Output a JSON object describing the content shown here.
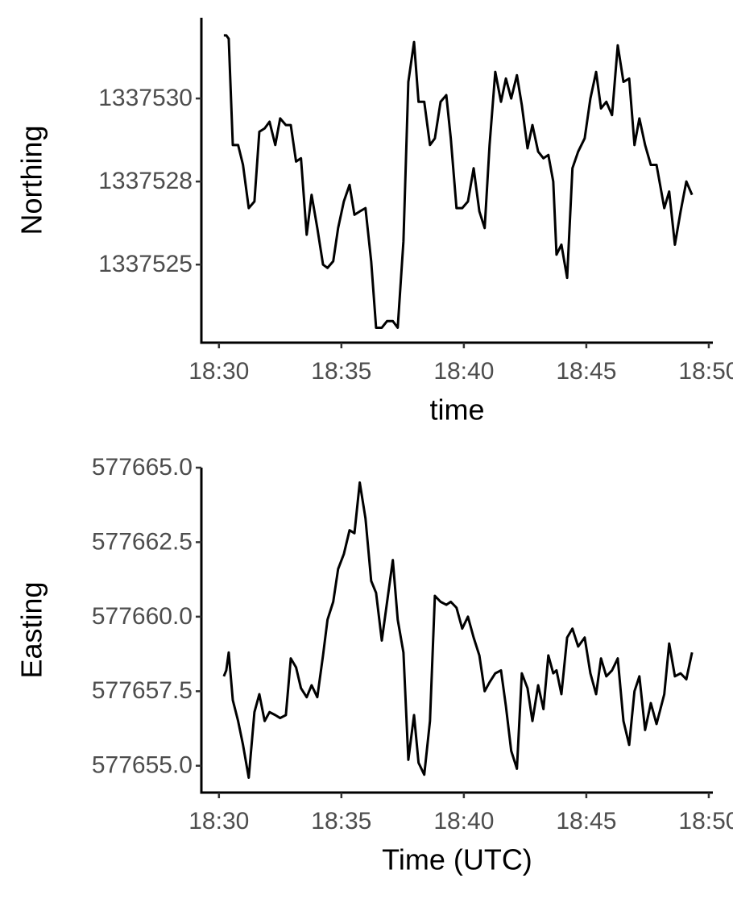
{
  "chart_data": [
    {
      "type": "line",
      "x_label": "time",
      "y_label": "Northing",
      "color": "#000000",
      "xlim": [
        "18:29:17",
        "18:50:10"
      ],
      "xticks": [
        "18:30",
        "18:35",
        "18:40",
        "18:45",
        "18:50"
      ],
      "ylim": [
        1337522.65,
        1337532.43
      ],
      "yticks": [
        {
          "value": 1337525,
          "label": "1337525"
        },
        {
          "value": 1337527.5,
          "label": "1337528"
        },
        {
          "value": 1337530,
          "label": "1337530"
        }
      ],
      "x": [
        "18:30:12",
        "18:30:18",
        "18:30:24",
        "18:30:34",
        "18:30:47",
        "18:30:59",
        "18:31:13",
        "18:31:27",
        "18:31:39",
        "18:31:52",
        "18:32:04",
        "18:32:18",
        "18:32:30",
        "18:32:44",
        "18:32:56",
        "18:33:09",
        "18:33:21",
        "18:33:35",
        "18:33:47",
        "18:34:01",
        "18:34:15",
        "18:34:26",
        "18:34:40",
        "18:34:52",
        "18:35:06",
        "18:35:20",
        "18:35:32",
        "18:35:45",
        "18:35:59",
        "18:36:13",
        "18:36:25",
        "18:36:39",
        "18:36:52",
        "18:37:06",
        "18:37:18",
        "18:37:32",
        "18:37:44",
        "18:37:58",
        "18:38:09",
        "18:38:23",
        "18:38:37",
        "18:38:49",
        "18:39:03",
        "18:39:17",
        "18:39:28",
        "18:39:42",
        "18:39:56",
        "18:40:10",
        "18:40:24",
        "18:40:38",
        "18:40:51",
        "18:41:03",
        "18:41:17",
        "18:41:31",
        "18:41:43",
        "18:41:56",
        "18:42:10",
        "18:42:22",
        "18:42:36",
        "18:42:48",
        "18:43:02",
        "18:43:15",
        "18:43:27",
        "18:43:39",
        "18:43:47",
        "18:43:59",
        "18:44:13",
        "18:44:26",
        "18:44:40",
        "18:44:56",
        "18:45:10",
        "18:45:24",
        "18:45:36",
        "18:45:49",
        "18:46:03",
        "18:46:17",
        "18:46:31",
        "18:46:45",
        "18:46:58",
        "18:47:10",
        "18:47:24",
        "18:47:38",
        "18:47:52",
        "18:48:11",
        "18:48:23",
        "18:48:37",
        "18:48:51",
        "18:49:05",
        "18:49:19"
      ],
      "values": [
        1337531.9,
        1337531.9,
        1337531.8,
        1337528.6,
        1337528.6,
        1337528.0,
        1337526.7,
        1337526.9,
        1337529.0,
        1337529.1,
        1337529.3,
        1337528.6,
        1337529.4,
        1337529.2,
        1337529.2,
        1337528.1,
        1337528.2,
        1337525.9,
        1337527.1,
        1337526.1,
        1337525.0,
        1337524.9,
        1337525.1,
        1337526.1,
        1337526.9,
        1337527.4,
        1337526.5,
        1337526.6,
        1337526.7,
        1337525.1,
        1337523.1,
        1337523.1,
        1337523.3,
        1337523.3,
        1337523.1,
        1337525.7,
        1337530.5,
        1337531.7,
        1337529.9,
        1337529.9,
        1337528.6,
        1337528.8,
        1337529.9,
        1337530.1,
        1337528.8,
        1337526.7,
        1337526.7,
        1337526.9,
        1337527.9,
        1337526.6,
        1337526.1,
        1337528.6,
        1337530.8,
        1337529.9,
        1337530.6,
        1337530.0,
        1337530.7,
        1337529.8,
        1337528.5,
        1337529.2,
        1337528.4,
        1337528.2,
        1337528.3,
        1337527.5,
        1337525.3,
        1337525.6,
        1337524.6,
        1337527.9,
        1337528.4,
        1337528.8,
        1337530.0,
        1337530.8,
        1337529.7,
        1337529.9,
        1337529.5,
        1337531.6,
        1337530.5,
        1337530.6,
        1337528.6,
        1337529.4,
        1337528.6,
        1337528.0,
        1337528.0,
        1337526.7,
        1337527.2,
        1337525.6,
        1337526.6,
        1337527.5,
        1337527.1
      ]
    },
    {
      "type": "line",
      "x_label": "Time (UTC)",
      "y_label": "Easting",
      "color": "#000000",
      "xlim": [
        "18:29:17",
        "18:50:10"
      ],
      "xticks": [
        "18:30",
        "18:35",
        "18:40",
        "18:45",
        "18:50"
      ],
      "ylim": [
        577654.1,
        577665.0
      ],
      "yticks": [
        {
          "value": 577655,
          "label": "577655.0"
        },
        {
          "value": 577657.5,
          "label": "577657.5"
        },
        {
          "value": 577660,
          "label": "577660.0"
        },
        {
          "value": 577662.5,
          "label": "577662.5"
        },
        {
          "value": 577665,
          "label": "577665.0"
        }
      ],
      "x": [
        "18:30:12",
        "18:30:18",
        "18:30:24",
        "18:30:34",
        "18:30:47",
        "18:30:59",
        "18:31:13",
        "18:31:27",
        "18:31:39",
        "18:31:52",
        "18:32:04",
        "18:32:18",
        "18:32:30",
        "18:32:44",
        "18:32:56",
        "18:33:09",
        "18:33:21",
        "18:33:35",
        "18:33:47",
        "18:34:01",
        "18:34:15",
        "18:34:26",
        "18:34:40",
        "18:34:52",
        "18:35:06",
        "18:35:20",
        "18:35:32",
        "18:35:45",
        "18:35:59",
        "18:36:13",
        "18:36:25",
        "18:36:39",
        "18:36:52",
        "18:37:06",
        "18:37:18",
        "18:37:32",
        "18:37:44",
        "18:37:58",
        "18:38:09",
        "18:38:23",
        "18:38:37",
        "18:38:49",
        "18:39:03",
        "18:39:17",
        "18:39:28",
        "18:39:42",
        "18:39:56",
        "18:40:10",
        "18:40:24",
        "18:40:38",
        "18:40:51",
        "18:41:03",
        "18:41:17",
        "18:41:31",
        "18:41:43",
        "18:41:56",
        "18:42:10",
        "18:42:22",
        "18:42:36",
        "18:42:48",
        "18:43:02",
        "18:43:15",
        "18:43:27",
        "18:43:39",
        "18:43:47",
        "18:43:59",
        "18:44:13",
        "18:44:26",
        "18:44:40",
        "18:44:56",
        "18:45:10",
        "18:45:24",
        "18:45:36",
        "18:45:49",
        "18:46:03",
        "18:46:17",
        "18:46:31",
        "18:46:45",
        "18:46:58",
        "18:47:10",
        "18:47:24",
        "18:47:38",
        "18:47:52",
        "18:48:11",
        "18:48:23",
        "18:48:37",
        "18:48:51",
        "18:49:05",
        "18:49:19"
      ],
      "values": [
        577658.0,
        577658.2,
        577658.8,
        577657.2,
        577656.5,
        577655.7,
        577654.6,
        577656.8,
        577657.4,
        577656.5,
        577656.8,
        577656.7,
        577656.6,
        577656.7,
        577658.6,
        577658.3,
        577657.6,
        577657.3,
        577657.7,
        577657.3,
        577658.7,
        577659.9,
        577660.5,
        577661.6,
        577662.1,
        577662.9,
        577662.8,
        577664.5,
        577663.3,
        577661.2,
        577660.8,
        577659.2,
        577660.5,
        577661.9,
        577659.9,
        577658.8,
        577655.2,
        577656.7,
        577655.1,
        577654.7,
        577656.5,
        577660.7,
        577660.5,
        577660.4,
        577660.5,
        577660.3,
        577659.6,
        577660.0,
        577659.3,
        577658.7,
        577657.5,
        577657.8,
        577658.1,
        577658.2,
        577657.0,
        577655.5,
        577654.9,
        577658.1,
        577657.6,
        577656.5,
        577657.7,
        577656.9,
        577658.7,
        577658.1,
        577658.2,
        577657.4,
        577659.3,
        577659.6,
        577659.0,
        577659.3,
        577658.1,
        577657.4,
        577658.6,
        577658.0,
        577658.2,
        577658.6,
        577656.5,
        577655.7,
        577657.5,
        577658.0,
        577656.2,
        577657.1,
        577656.4,
        577657.4,
        577659.1,
        577658.0,
        577658.1,
        577657.9,
        577658.8
      ]
    }
  ]
}
